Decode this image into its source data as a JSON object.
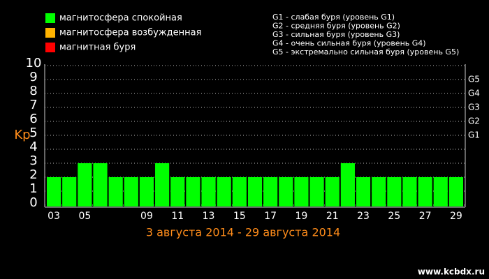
{
  "chart_data": {
    "type": "bar",
    "legend": [
      {
        "name": "магнитосфера спокойная",
        "color": "#00ff00"
      },
      {
        "name": "магнитосфера возбужденная",
        "color": "#ffb300"
      },
      {
        "name": "магнитная буря",
        "color": "#ff0000"
      }
    ],
    "storm_levels": [
      "G1 - слабая буря (уровень G1)",
      "G2 - средняя буря (уровень G2)",
      "G3 - сильная буря (уровень G3)",
      "G4 - очень сильная буря (уровень G4)",
      "G5 - экстремально сильная буря (уровень G5)"
    ],
    "ylabel": "Kp",
    "subtitle": "3 августа 2014 - 29 августа 2014",
    "watermark": "www.kcbdx.ru",
    "categories": [
      "03",
      null,
      "05",
      null,
      null,
      null,
      "09",
      null,
      "11",
      null,
      "13",
      null,
      "15",
      null,
      "17",
      null,
      "19",
      null,
      "21",
      null,
      "23",
      null,
      "25",
      null,
      "27",
      null,
      "29"
    ],
    "series": [
      {
        "name": "Kp",
        "color": "#00ff00",
        "values": [
          2,
          2,
          3,
          3,
          2,
          2,
          2,
          3,
          2,
          2,
          2,
          2,
          2,
          2,
          2,
          2,
          2,
          2,
          2,
          3,
          2,
          2,
          2,
          2,
          2,
          2,
          2
        ]
      }
    ],
    "ylim": [
      0,
      10
    ],
    "yticks": [
      0,
      1,
      2,
      3,
      4,
      5,
      6,
      7,
      8,
      9,
      10
    ],
    "y2ticks": [
      {
        "value": 5,
        "label": "G1"
      },
      {
        "value": 6,
        "label": "G2"
      },
      {
        "value": 7,
        "label": "G3"
      },
      {
        "value": 8,
        "label": "G4"
      },
      {
        "value": 9,
        "label": "G5"
      }
    ],
    "grid": true
  }
}
